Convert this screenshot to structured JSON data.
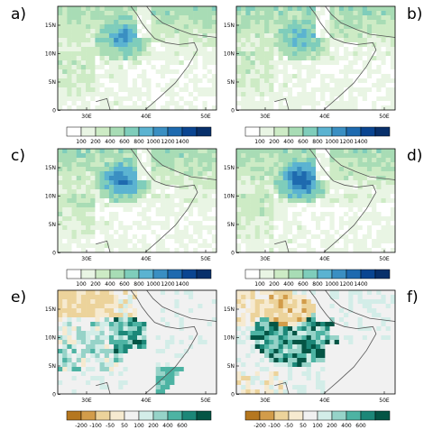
{
  "chart_data": [
    {
      "type": "heatmap",
      "panel_label": "a)",
      "colorbar": "precip",
      "x_ticks": [
        "30E",
        "40E",
        "50E"
      ],
      "y_ticks": [
        "15N",
        "10N",
        "5N",
        "0"
      ],
      "peak_class": 6
    },
    {
      "type": "heatmap",
      "panel_label": "b)",
      "colorbar": "precip",
      "x_ticks": [
        "30E",
        "40E",
        "50E"
      ],
      "y_ticks": [
        "15N",
        "10N",
        "5N",
        "0"
      ],
      "peak_class": 5
    },
    {
      "type": "heatmap",
      "panel_label": "c)",
      "colorbar": "precip",
      "x_ticks": [
        "30E",
        "40E",
        "50E"
      ],
      "y_ticks": [
        "15N",
        "10N",
        "5N",
        "0"
      ],
      "peak_class": 7
    },
    {
      "type": "heatmap",
      "panel_label": "d)",
      "colorbar": "precip",
      "x_ticks": [
        "30E",
        "40E",
        "50E"
      ],
      "y_ticks": [
        "15N",
        "10N",
        "5N",
        "0"
      ],
      "peak_class": 8
    },
    {
      "type": "heatmap",
      "panel_label": "e)",
      "colorbar": "diff",
      "x_ticks": [
        "30E",
        "40E",
        "50E"
      ],
      "y_ticks": [
        "15N",
        "10N",
        "5N",
        "0"
      ]
    },
    {
      "type": "heatmap",
      "panel_label": "f)",
      "colorbar": "diff",
      "x_ticks": [
        "30E",
        "40E",
        "50E"
      ],
      "y_ticks": [
        "15N",
        "10N",
        "5N",
        "0"
      ]
    }
  ],
  "colorbars": {
    "precip": {
      "labels": [
        "100",
        "200",
        "400",
        "600",
        "800",
        "1000",
        "1200",
        "1400"
      ],
      "colors": [
        "#ffffff",
        "#e9f5e4",
        "#cdebc5",
        "#a8dcb5",
        "#7fcdbb",
        "#5bb3d1",
        "#3a8fc2",
        "#1e6aaf",
        "#0a4591",
        "#08306b"
      ]
    },
    "diff": {
      "labels": [
        "-200",
        "-100",
        "-50",
        "50",
        "100",
        "200",
        "400",
        "600"
      ],
      "colors": [
        "#b5771f",
        "#d29c4a",
        "#ecd39b",
        "#f6ead0",
        "#f1f1f1",
        "#d3ede8",
        "#96d3c8",
        "#4db3a3",
        "#1c8778",
        "#045545"
      ]
    }
  }
}
